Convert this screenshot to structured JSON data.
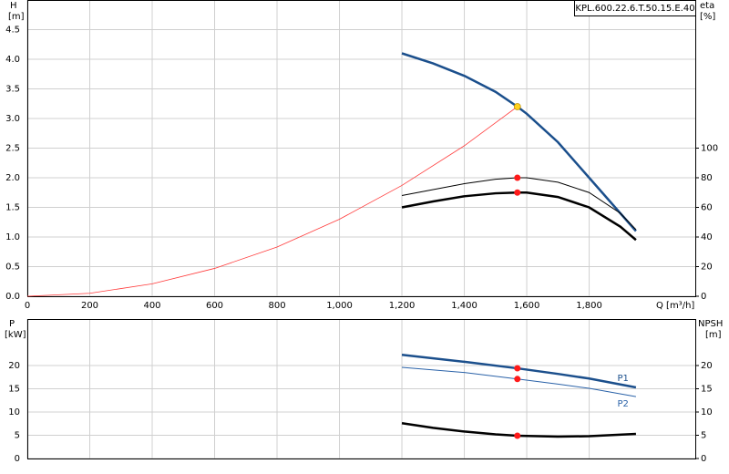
{
  "chart_data": [
    {
      "type": "line",
      "model_label": "KPL.600.22.6.T.50.15.E.40",
      "y_label": "H",
      "y_unit": "[m]",
      "y2_label": "eta",
      "y2_unit": "[%]",
      "x_label": "Q [m³/h]",
      "xlim": [
        0,
        2140
      ],
      "xticks": [
        0,
        200,
        400,
        600,
        800,
        {
          "value": 1000,
          "label": "1,000"
        },
        {
          "value": 1200,
          "label": "1,200"
        },
        {
          "value": 1400,
          "label": "1,400"
        },
        {
          "value": 1600,
          "label": "1,600"
        },
        {
          "value": 1800,
          "label": "1,800"
        }
      ],
      "ylim": [
        0,
        5
      ],
      "yticks": [
        {
          "value": 0,
          "label": "0.0"
        },
        0.5,
        {
          "value": 1,
          "label": "1.0"
        },
        1.5,
        {
          "value": 2,
          "label": "2.0"
        },
        2.5,
        {
          "value": 3,
          "label": "3.0"
        },
        3.5,
        {
          "value": 4,
          "label": "4.0"
        },
        4.5
      ],
      "y2lim": [
        0,
        200
      ],
      "y2ticks": [
        0,
        20,
        40,
        60,
        80,
        100
      ],
      "grid": true,
      "series": [
        {
          "color": "#1b4f8c",
          "line_width": 2.5,
          "x": [
            1200,
            1300,
            1400,
            1500,
            1570,
            1600,
            1700,
            1800,
            1900,
            1950
          ],
          "values": [
            4.1,
            3.93,
            3.72,
            3.45,
            3.2,
            3.08,
            2.6,
            2.0,
            1.4,
            1.1
          ]
        },
        {
          "color": "#ff3b3b",
          "line_width": 0.8,
          "x": [
            0,
            200,
            400,
            600,
            800,
            1000,
            1200,
            1400,
            1570
          ],
          "values": [
            0,
            0.05,
            0.21,
            0.47,
            0.83,
            1.3,
            1.87,
            2.54,
            3.2
          ]
        },
        {
          "color": "#000000",
          "line_width": 1,
          "axis": "y2",
          "x": [
            1200,
            1300,
            1400,
            1500,
            1570,
            1600,
            1700,
            1800,
            1900,
            1950
          ],
          "values": [
            68,
            72,
            76,
            79,
            80,
            80,
            77,
            70,
            56,
            45
          ]
        },
        {
          "color": "#000000",
          "line_width": 2.5,
          "axis": "y2",
          "x": [
            1200,
            1300,
            1400,
            1500,
            1570,
            1600,
            1700,
            1800,
            1900,
            1950
          ],
          "values": [
            60,
            64,
            67.5,
            69.5,
            70,
            70,
            67,
            60,
            47,
            38
          ]
        }
      ],
      "markers": [
        {
          "x": 1570,
          "y": 3.2,
          "color": "#ffd21f"
        },
        {
          "x": 1570,
          "y": 80,
          "axis": "y2",
          "color": "#ff1a1a"
        },
        {
          "x": 1570,
          "y": 70,
          "axis": "y2",
          "color": "#ff1a1a"
        }
      ]
    },
    {
      "type": "line",
      "y_label": "P",
      "y_unit": "[kW]",
      "y2_label": "NPSH",
      "y2_unit": "[m]",
      "ylim": [
        0,
        30
      ],
      "yticks": [
        0,
        5,
        10,
        15,
        20
      ],
      "y2lim": [
        0,
        30
      ],
      "y2ticks": [
        0,
        5,
        10,
        15,
        20
      ],
      "grid": true,
      "series": [
        {
          "name": "P1",
          "color": "#1b4f8c",
          "line_width": 2.5,
          "x": [
            1200,
            1400,
            1570,
            1700,
            1800,
            1950
          ],
          "values": [
            22.3,
            20.8,
            19.4,
            18.2,
            17.2,
            15.3
          ]
        },
        {
          "name": "P2",
          "color": "#2a62a8",
          "line_width": 1,
          "x": [
            1200,
            1400,
            1570,
            1700,
            1800,
            1950
          ],
          "values": [
            19.6,
            18.5,
            17.1,
            16.0,
            15.1,
            13.3
          ]
        },
        {
          "color": "#000000",
          "line_width": 2.5,
          "axis": "y2",
          "x": [
            1200,
            1300,
            1400,
            1500,
            1570,
            1700,
            1800,
            1950
          ],
          "values": [
            7.6,
            6.6,
            5.8,
            5.2,
            4.9,
            4.7,
            4.8,
            5.3
          ]
        }
      ],
      "markers": [
        {
          "x": 1570,
          "y": 19.4,
          "color": "#ff1a1a"
        },
        {
          "x": 1570,
          "y": 17.1,
          "color": "#ff1a1a"
        },
        {
          "x": 1570,
          "y": 4.9,
          "axis": "y2",
          "color": "#ff1a1a"
        }
      ]
    }
  ]
}
